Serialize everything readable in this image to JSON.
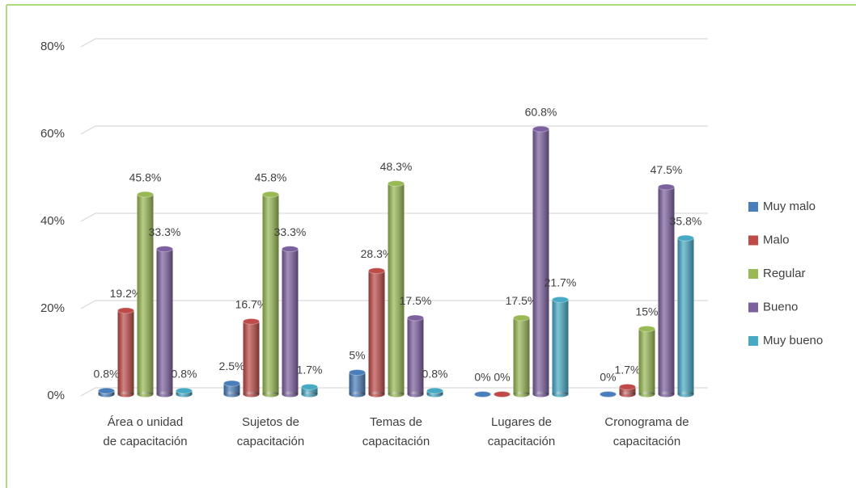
{
  "chart_data": {
    "type": "bar",
    "categories": [
      [
        "Área o unidad",
        "de capacitación"
      ],
      [
        "Sujetos de",
        "capacitación"
      ],
      [
        "Temas de",
        "capacitación"
      ],
      [
        "Lugares de",
        "capacitación"
      ],
      [
        "Cronograma de",
        "capacitación"
      ]
    ],
    "series": [
      {
        "name": "Muy malo",
        "color": "#4a7ebb",
        "values": [
          0.8,
          2.5,
          5,
          0,
          0
        ],
        "value_labels": [
          "0.8%",
          "2.5%",
          "5%",
          "0%",
          "0%"
        ]
      },
      {
        "name": "Malo",
        "color": "#be4b48",
        "values": [
          19.2,
          16.7,
          28.3,
          0,
          1.7
        ],
        "value_labels": [
          "19.2%",
          "16.7%",
          "28.3%",
          "0%",
          "1.7%"
        ]
      },
      {
        "name": "Regular",
        "color": "#98b954",
        "values": [
          45.8,
          45.8,
          48.3,
          17.5,
          15
        ],
        "value_labels": [
          "45.8%",
          "45.8%",
          "48.3%",
          "17.5%",
          "15%"
        ]
      },
      {
        "name": "Bueno",
        "color": "#7d60a0",
        "values": [
          33.3,
          33.3,
          17.5,
          60.8,
          47.5
        ],
        "value_labels": [
          "33.3%",
          "33.3%",
          "17.5%",
          "60.8%",
          "47.5%"
        ]
      },
      {
        "name": "Muy bueno",
        "color": "#46aac5",
        "values": [
          0.8,
          1.7,
          0.8,
          21.7,
          35.8
        ],
        "value_labels": [
          "0.8%",
          "1.7%",
          "0.8%",
          "21.7%",
          "35.8%"
        ]
      }
    ],
    "ylim": [
      0,
      80
    ],
    "yticks": [
      {
        "value": 0,
        "label": "0%"
      },
      {
        "value": 20,
        "label": "20%"
      },
      {
        "value": 40,
        "label": "40%"
      },
      {
        "value": 60,
        "label": "60%"
      },
      {
        "value": 80,
        "label": "80%"
      }
    ],
    "grid": true,
    "legend": "right"
  }
}
